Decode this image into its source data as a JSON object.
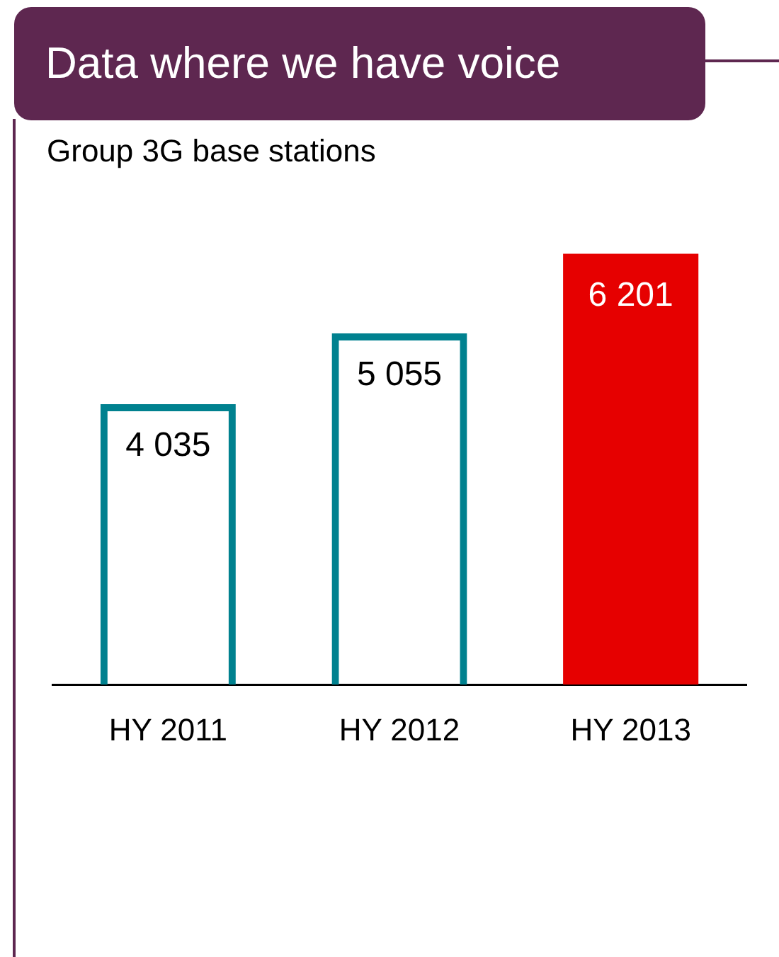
{
  "chart_data": {
    "type": "bar",
    "title": "Data where we have voice",
    "subtitle": "Group 3G base stations",
    "categories": [
      "HY 2011",
      "HY 2012",
      "HY 2013"
    ],
    "series": [
      {
        "color": "#00818f",
        "values": [
          4035,
          5055,
          null
        ],
        "value_labels": [
          "4 035",
          "5 055",
          null
        ]
      },
      {
        "color": "#e60000",
        "values": [
          null,
          null,
          6201
        ],
        "value_labels": [
          null,
          null,
          "6 201"
        ]
      }
    ],
    "grid": false,
    "legend": false,
    "tick_labels": "x"
  }
}
